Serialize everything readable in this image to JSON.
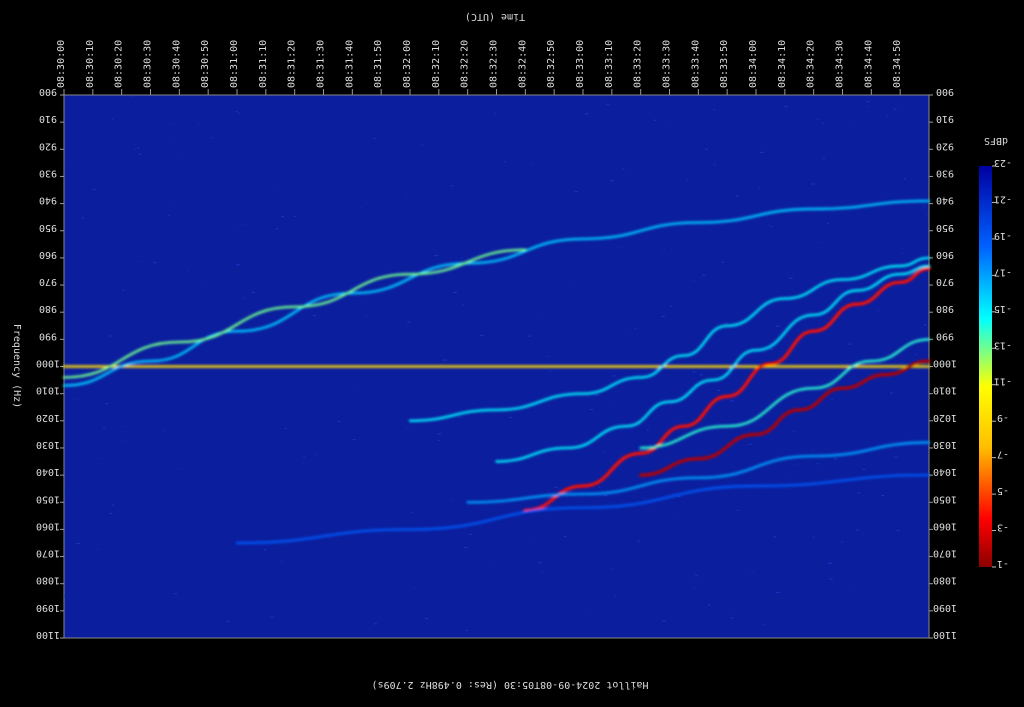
{
  "chart_data": {
    "type": "heatmap",
    "title": "Time (UTC)",
    "ylabel": "Frequency (Hz)",
    "footer": "Haillot 2024-09-08T05:30 (Res: 0.498Hz 2.709s)",
    "x_ticks": [
      "08:30:00",
      "08:30:10",
      "08:30:20",
      "08:30:30",
      "08:30:40",
      "08:30:50",
      "08:31:00",
      "08:31:10",
      "08:31:20",
      "08:31:30",
      "08:31:40",
      "08:31:50",
      "08:32:00",
      "08:32:10",
      "08:32:20",
      "08:32:30",
      "08:32:40",
      "08:32:50",
      "08:33:00",
      "08:33:10",
      "08:33:20",
      "08:33:30",
      "08:33:40",
      "08:33:50",
      "08:34:00",
      "08:34:10",
      "08:34:20",
      "08:34:30",
      "08:34:40",
      "08:34:50"
    ],
    "y_ticks": [
      900,
      910,
      920,
      930,
      940,
      950,
      960,
      970,
      980,
      990,
      1000,
      1010,
      1020,
      1030,
      1040,
      1050,
      1060,
      1070,
      1080,
      1090,
      1100
    ],
    "ylim": [
      1100,
      900
    ],
    "xlim_seconds": [
      0,
      300
    ],
    "colorbar": {
      "label": "dBFS",
      "ticks": [
        -23,
        -21,
        -19,
        -17,
        -15,
        -13,
        -11,
        -9,
        -7,
        -5,
        -3,
        -1
      ],
      "range": [
        -23,
        -1
      ]
    },
    "background_level": -22,
    "series": [
      {
        "values": [
          [
            0,
            1000
          ],
          [
            300,
            1000
          ]
        ],
        "level": -9
      },
      {
        "values": [
          [
            0,
            1007
          ],
          [
            30,
            998
          ],
          [
            60,
            987
          ],
          [
            100,
            973
          ],
          [
            140,
            962
          ],
          [
            180,
            953
          ],
          [
            220,
            947
          ],
          [
            260,
            942
          ],
          [
            300,
            939
          ]
        ],
        "level": -16
      },
      {
        "values": [
          [
            0,
            1004
          ],
          [
            40,
            991
          ],
          [
            80,
            978
          ],
          [
            120,
            966
          ],
          [
            160,
            957
          ]
        ],
        "level": -13
      },
      {
        "values": [
          [
            120,
            1020
          ],
          [
            150,
            1016
          ],
          [
            180,
            1010
          ],
          [
            200,
            1004
          ],
          [
            215,
            996
          ],
          [
            230,
            985
          ],
          [
            250,
            975
          ],
          [
            270,
            968
          ],
          [
            290,
            963
          ],
          [
            300,
            960
          ]
        ],
        "level": -15
      },
      {
        "values": [
          [
            150,
            1035
          ],
          [
            175,
            1030
          ],
          [
            195,
            1022
          ],
          [
            210,
            1013
          ],
          [
            225,
            1005
          ],
          [
            240,
            994
          ],
          [
            260,
            981
          ],
          [
            275,
            972
          ],
          [
            290,
            966
          ],
          [
            300,
            963
          ]
        ],
        "level": -15
      },
      {
        "values": [
          [
            160,
            1053
          ],
          [
            180,
            1044
          ],
          [
            200,
            1032
          ],
          [
            215,
            1022
          ],
          [
            230,
            1011
          ],
          [
            245,
            999
          ],
          [
            260,
            987
          ],
          [
            275,
            977
          ],
          [
            290,
            969
          ],
          [
            300,
            964
          ]
        ],
        "level": -4
      },
      {
        "values": [
          [
            200,
            1040
          ],
          [
            220,
            1034
          ],
          [
            240,
            1025
          ],
          [
            255,
            1016
          ],
          [
            270,
            1008
          ],
          [
            285,
            1003
          ],
          [
            300,
            998
          ]
        ],
        "level": -2
      },
      {
        "values": [
          [
            200,
            1030
          ],
          [
            230,
            1022
          ],
          [
            260,
            1008
          ],
          [
            280,
            998
          ],
          [
            300,
            990
          ]
        ],
        "level": -14
      },
      {
        "values": [
          [
            140,
            1050
          ],
          [
            180,
            1047
          ],
          [
            220,
            1041
          ],
          [
            260,
            1033
          ],
          [
            300,
            1028
          ]
        ],
        "level": -17
      },
      {
        "values": [
          [
            60,
            1065
          ],
          [
            120,
            1060
          ],
          [
            180,
            1052
          ],
          [
            240,
            1044
          ],
          [
            300,
            1040
          ]
        ],
        "level": -19
      }
    ]
  }
}
